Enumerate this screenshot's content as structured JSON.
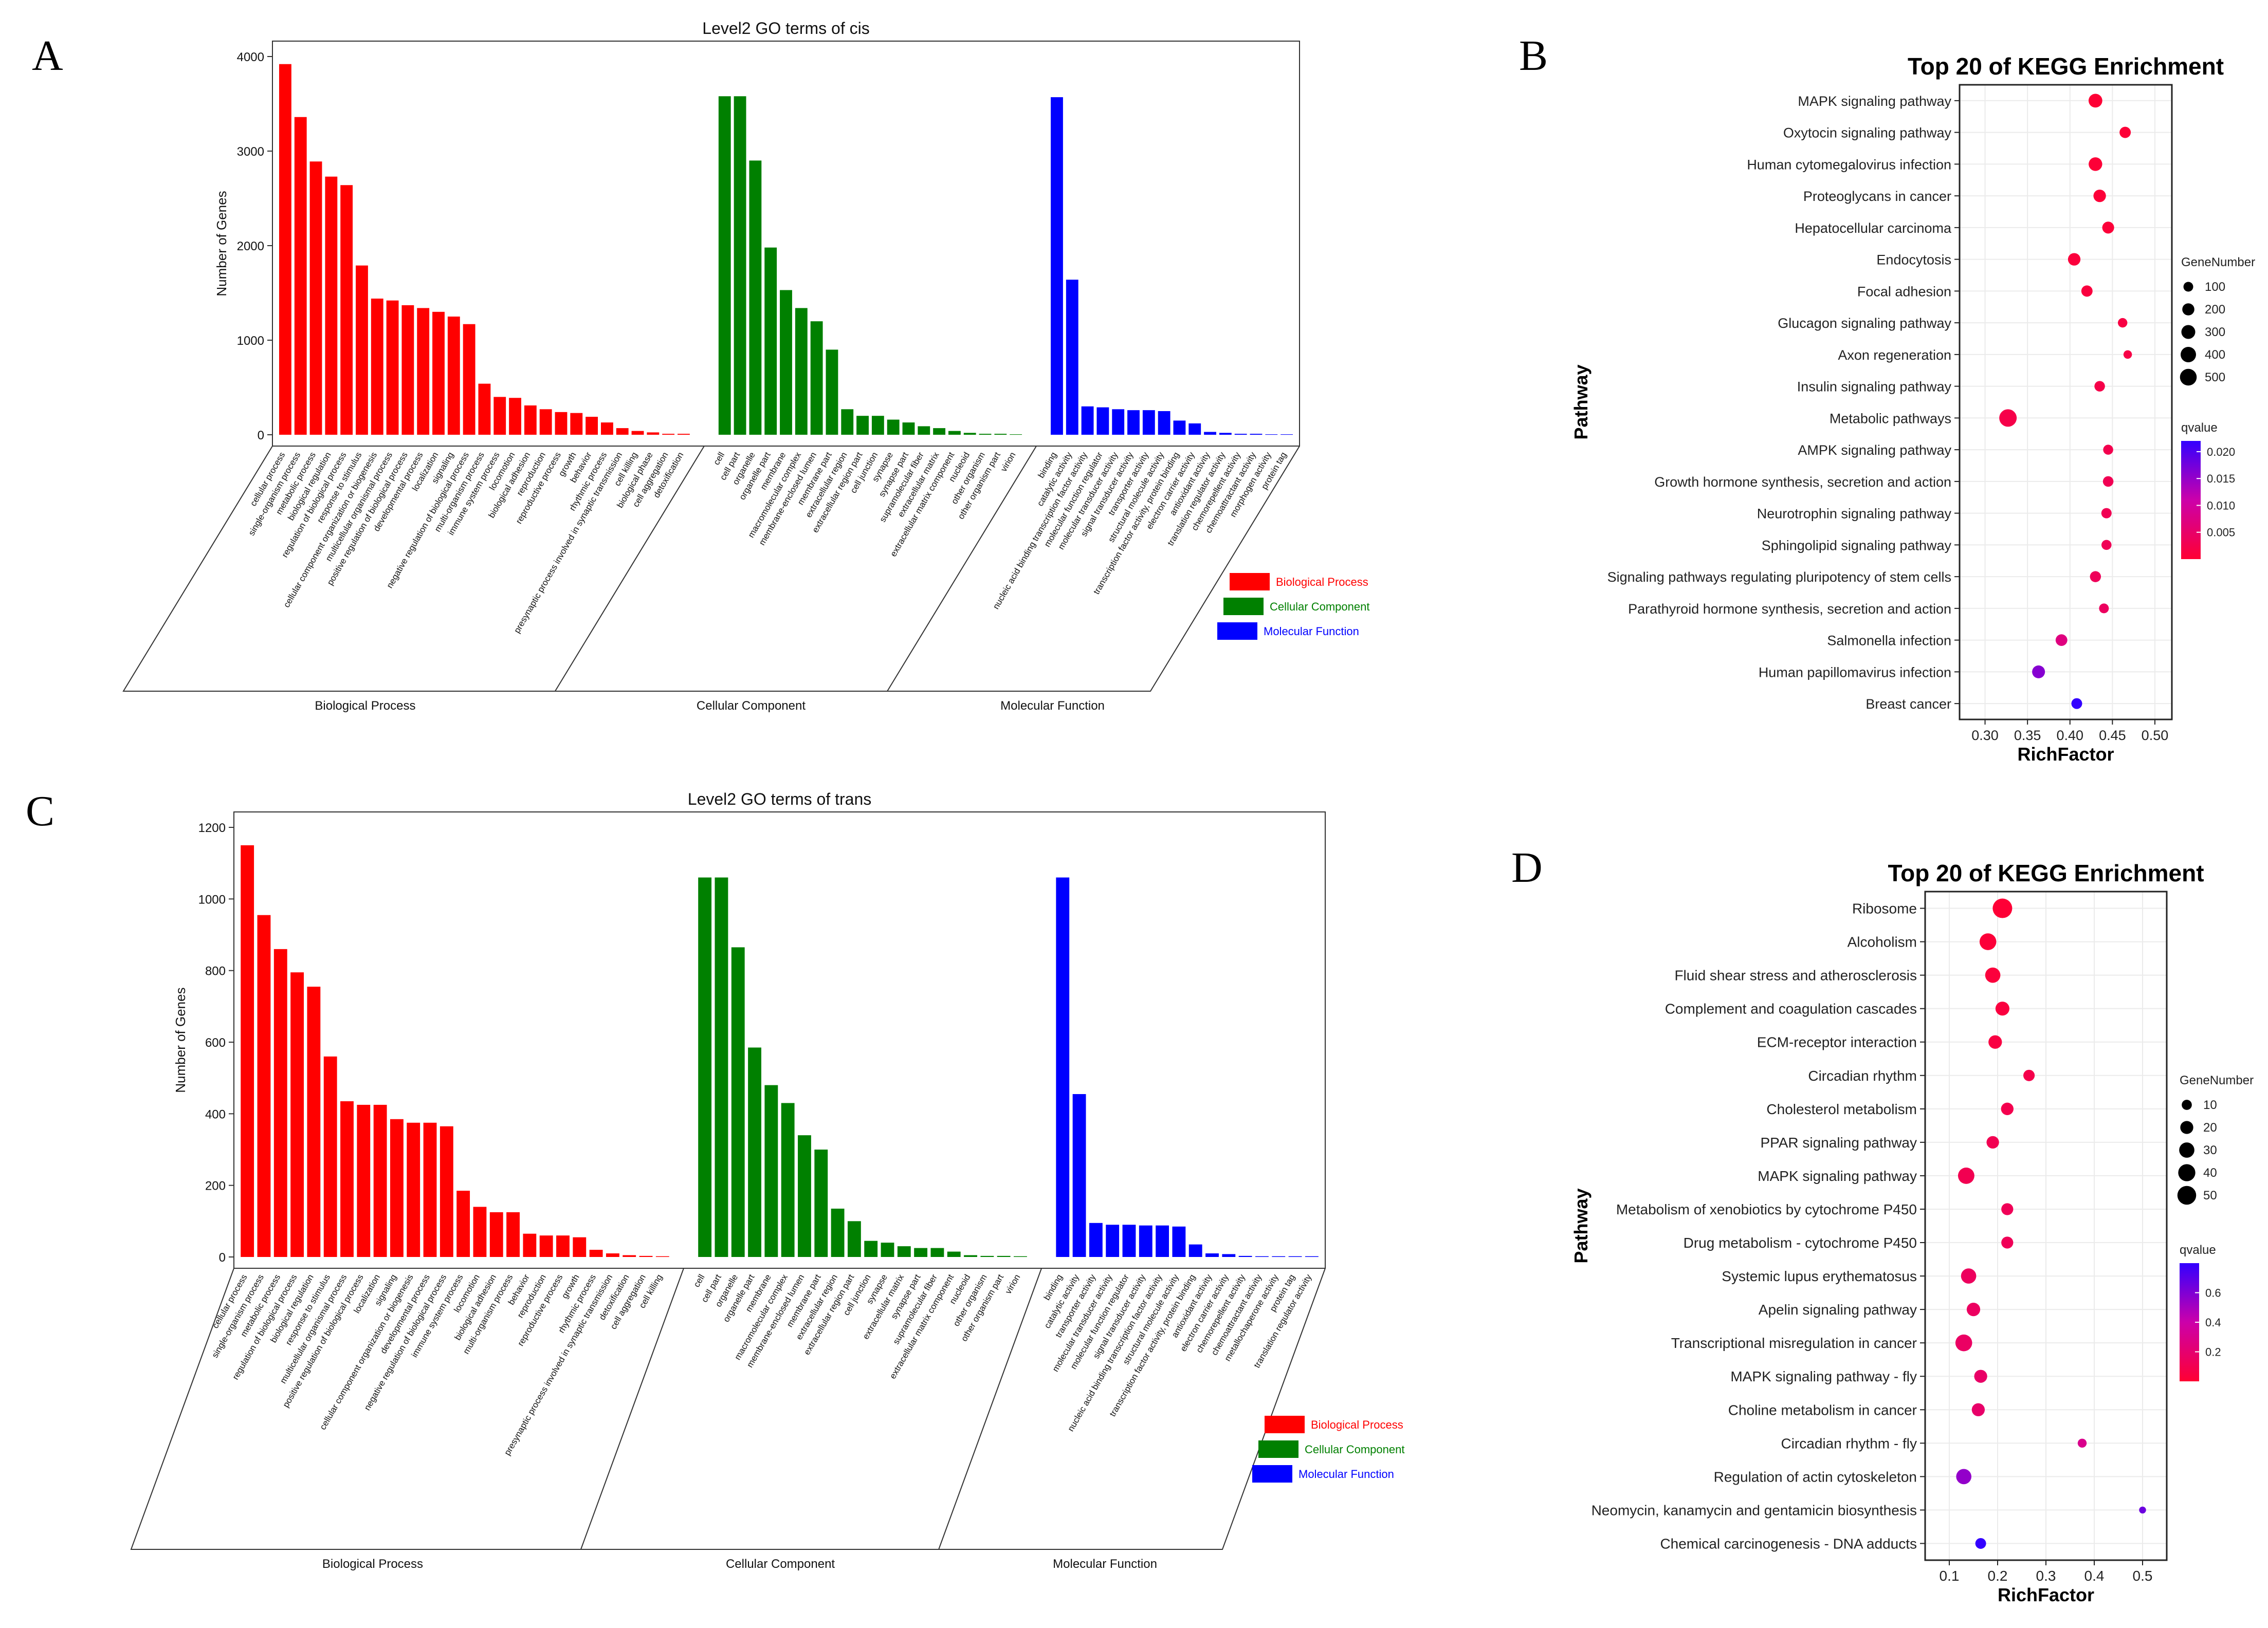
{
  "panels": {
    "a": "A",
    "b": "B",
    "c": "C",
    "d": "D"
  },
  "colors": {
    "bp": "#ff0000",
    "cc": "#008000",
    "mf": "#0000ff",
    "q_high": "#ff0033",
    "q_mid": "#cc00aa",
    "q_low": "#3300ff",
    "grid": "#ebebeb"
  },
  "chart_data": [
    {
      "id": "A",
      "type": "bar",
      "title": "Level2 GO terms of cis",
      "ylabel": "Number of Genes",
      "ylim": [
        0,
        4000
      ],
      "yticks": [
        0,
        1000,
        2000,
        3000,
        4000
      ],
      "legend": [
        "Biological Process",
        "Cellular Component",
        "Molecular Function"
      ],
      "legend_position": "bottom-right",
      "groups": [
        {
          "name": "Biological Process",
          "color_key": "bp",
          "categories": [
            "cellular process",
            "single-organism process",
            "metabolic process",
            "biological regulation",
            "regulation of biological process",
            "response to stimulus",
            "cellular component organization or biogenesis",
            "multicellular organismal process",
            "positive regulation of biological process",
            "developmental process",
            "localization",
            "signaling",
            "negative regulation of biological process",
            "multi-organism process",
            "immune system process",
            "locomotion",
            "biological adhesion",
            "reproduction",
            "reproductive process",
            "growth",
            "behavior",
            "rhythmic process",
            "presynaptic process involved in synaptic transmission",
            "cell killing",
            "biological phase",
            "cell aggregation",
            "detoxification"
          ],
          "values": [
            3920,
            3360,
            2890,
            2730,
            2640,
            1790,
            1440,
            1420,
            1370,
            1340,
            1300,
            1250,
            1170,
            540,
            400,
            390,
            310,
            270,
            240,
            230,
            190,
            130,
            70,
            40,
            25,
            10,
            10
          ]
        },
        {
          "name": "Cellular Component",
          "color_key": "cc",
          "categories": [
            "cell",
            "cell part",
            "organelle",
            "organelle part",
            "membrane",
            "macromolecular complex",
            "membrane-enclosed lumen",
            "membrane part",
            "extracellular region",
            "extracellular region part",
            "cell junction",
            "synapse",
            "synapse part",
            "supramolecular fiber",
            "extracellular matrix",
            "extracellular matrix component",
            "nucleoid",
            "other organism",
            "other organism part",
            "virion"
          ],
          "values": [
            3580,
            3580,
            2900,
            1980,
            1530,
            1340,
            1200,
            900,
            270,
            200,
            200,
            160,
            130,
            90,
            70,
            40,
            20,
            10,
            10,
            5
          ]
        },
        {
          "name": "Molecular Function",
          "color_key": "mf",
          "categories": [
            "binding",
            "catalytic activity",
            "nucleic acid binding transcription factor activity",
            "molecular function regulator",
            "molecular transducer activity",
            "signal transducer activity",
            "transporter activity",
            "structural molecule activity",
            "transcription factor activity, protein binding",
            "electron carrier activity",
            "antioxidant activity",
            "translation regulator activity",
            "chemorepellent activity",
            "chemoattractant activity",
            "morphogen activity",
            "protein tag"
          ],
          "values": [
            3570,
            1640,
            300,
            290,
            270,
            260,
            260,
            250,
            150,
            120,
            30,
            20,
            10,
            10,
            5,
            5
          ]
        }
      ],
      "group_labels": [
        "Biological Process",
        "Cellular Component",
        "Molecular Function"
      ]
    },
    {
      "id": "B",
      "type": "scatter",
      "title": "Top 20 of KEGG Enrichment",
      "xlabel": "RichFactor",
      "ylabel": "Pathway",
      "xlim": [
        0.27,
        0.52
      ],
      "xticks": [
        0.3,
        0.35,
        0.4,
        0.45,
        0.5
      ],
      "xtick_labels": [
        "0.30",
        "0.35",
        "0.40",
        "0.45",
        "0.50"
      ],
      "size_legend_title": "GeneNumber",
      "size_legend_values": [
        100,
        200,
        300,
        400,
        500
      ],
      "color_legend_title": "qvalue",
      "color_legend_ticks": [
        "0.020",
        "0.015",
        "0.010",
        "0.005"
      ],
      "color_legend_tick_values": [
        0.02,
        0.015,
        0.01,
        0.005
      ],
      "color_range": [
        0,
        0.022
      ],
      "size_range": [
        30,
        560
      ],
      "pathways": [
        "MAPK signaling pathway",
        "Oxytocin signaling pathway",
        "Human cytomegalovirus infection",
        "Proteoglycans in cancer",
        "Hepatocellular carcinoma",
        "Endocytosis",
        "Focal adhesion",
        "Glucagon signaling pathway",
        "Axon regeneration",
        "Insulin signaling pathway",
        "Metabolic pathways",
        "AMPK signaling pathway",
        "Growth hormone synthesis, secretion and action",
        "Neurotrophin signaling pathway",
        "Sphingolipid signaling pathway",
        "Signaling pathways regulating pluripotency of stem cells",
        "Parathyroid hormone synthesis, secretion and action",
        "Salmonella infection",
        "Human papillomavirus infection",
        "Breast cancer"
      ],
      "richfactor": [
        0.43,
        0.465,
        0.43,
        0.435,
        0.445,
        0.405,
        0.42,
        0.462,
        0.468,
        0.435,
        0.327,
        0.445,
        0.445,
        0.443,
        0.443,
        0.43,
        0.44,
        0.39,
        0.363,
        0.408
      ],
      "gene_number": [
        290,
        160,
        280,
        220,
        190,
        220,
        160,
        90,
        60,
        130,
        560,
        110,
        130,
        120,
        110,
        150,
        100,
        180,
        240,
        140
      ],
      "qvalue": [
        0.0002,
        0.0004,
        0.0004,
        0.0005,
        0.0006,
        0.0008,
        0.001,
        0.0015,
        0.0018,
        0.002,
        0.002,
        0.0025,
        0.003,
        0.003,
        0.0032,
        0.0035,
        0.004,
        0.007,
        0.016,
        0.022
      ]
    },
    {
      "id": "C",
      "type": "bar",
      "title": "Level2 GO terms of trans",
      "ylabel": "Number of Genes",
      "ylim": [
        0,
        1200
      ],
      "yticks": [
        0,
        200,
        400,
        600,
        800,
        1000,
        1200
      ],
      "legend": [
        "Biological Process",
        "Cellular Component",
        "Molecular Function"
      ],
      "legend_position": "bottom-right",
      "groups": [
        {
          "name": "Biological Process",
          "color_key": "bp",
          "categories": [
            "cellular process",
            "single-organism process",
            "metabolic process",
            "regulation of biological process",
            "biological regulation",
            "response to stimulus",
            "multicellular organismal process",
            "positive regulation of biological process",
            "localization",
            "signaling",
            "cellular component organization or biogenesis",
            "developmental process",
            "negative regulation of biological process",
            "immune system process",
            "locomotion",
            "biological adhesion",
            "multi-organism process",
            "behavior",
            "reproduction",
            "reproductive process",
            "growth",
            "rhythmic process",
            "presynaptic process involved in synaptic transmission",
            "detoxification",
            "cell aggregation",
            "cell killing"
          ],
          "values": [
            1150,
            955,
            860,
            795,
            755,
            560,
            435,
            425,
            425,
            385,
            375,
            375,
            365,
            185,
            140,
            125,
            125,
            65,
            60,
            60,
            55,
            20,
            10,
            5,
            3,
            2
          ]
        },
        {
          "name": "Cellular Component",
          "color_key": "cc",
          "categories": [
            "cell",
            "cell part",
            "organelle",
            "organelle part",
            "membrane",
            "macromolecular complex",
            "membrane-enclosed lumen",
            "membrane part",
            "extracellular region",
            "extracellular region part",
            "cell junction",
            "synapse",
            "extracellular matrix",
            "synapse part",
            "supramolecular fiber",
            "extracellular matrix component",
            "nucleoid",
            "other organism",
            "other organism part",
            "virion"
          ],
          "values": [
            1060,
            1060,
            865,
            585,
            480,
            430,
            340,
            300,
            135,
            100,
            45,
            40,
            30,
            25,
            25,
            15,
            5,
            3,
            3,
            2
          ]
        },
        {
          "name": "Molecular Function",
          "color_key": "mf",
          "categories": [
            "binding",
            "catalytic activity",
            "transporter activity",
            "molecular transducer activity",
            "molecular function regulator",
            "signal transducer activity",
            "nucleic acid binding transcription factor activity",
            "structural molecule activity",
            "transcription factor activity, protein binding",
            "antioxidant activity",
            "electron carrier activity",
            "chemorepellent activity",
            "chemoattractant activity",
            "metallochaperone activity",
            "protein tag",
            "translation regulator activity"
          ],
          "values": [
            1060,
            455,
            95,
            90,
            90,
            88,
            88,
            85,
            35,
            10,
            8,
            3,
            2,
            2,
            2,
            2
          ]
        }
      ],
      "group_labels": [
        "Biological Process",
        "Cellular Component",
        "Molecular Function"
      ]
    },
    {
      "id": "D",
      "type": "scatter",
      "title": "Top 20 of KEGG Enrichment",
      "xlabel": "RichFactor",
      "ylabel": "Pathway",
      "xlim": [
        0.05,
        0.55
      ],
      "xticks": [
        0.1,
        0.2,
        0.3,
        0.4,
        0.5
      ],
      "xtick_labels": [
        "0.1",
        "0.2",
        "0.3",
        "0.4",
        "0.5"
      ],
      "size_legend_title": "GeneNumber",
      "size_legend_values": [
        10,
        20,
        30,
        40,
        50
      ],
      "color_legend_title": "qvalue",
      "color_legend_ticks": [
        "0.6",
        "0.4",
        "0.2"
      ],
      "color_legend_tick_values": [
        0.6,
        0.4,
        0.2
      ],
      "color_range": [
        0,
        0.8
      ],
      "size_range": [
        3,
        55
      ],
      "pathways": [
        "Ribosome",
        "Alcoholism",
        "Fluid shear stress and atherosclerosis",
        "Complement and coagulation cascades",
        "ECM-receptor interaction",
        "Circadian rhythm",
        "Cholesterol metabolism",
        "PPAR signaling pathway",
        "MAPK signaling pathway",
        "Metabolism of xenobiotics by cytochrome P450",
        "Drug metabolism - cytochrome P450",
        "Systemic lupus erythematosus",
        "Apelin signaling pathway",
        "Transcriptional misregulation in cancer",
        "MAPK signaling pathway - fly",
        "Choline metabolism in cancer",
        "Circadian rhythm - fly",
        "Regulation of actin cytoskeleton",
        "Neomycin, kanamycin and gentamicin biosynthesis",
        "Chemical carcinogenesis - DNA adducts"
      ],
      "richfactor": [
        0.21,
        0.18,
        0.19,
        0.21,
        0.195,
        0.265,
        0.22,
        0.19,
        0.135,
        0.22,
        0.22,
        0.14,
        0.15,
        0.13,
        0.165,
        0.16,
        0.375,
        0.13,
        0.5,
        0.165
      ],
      "gene_number": [
        55,
        38,
        30,
        24,
        22,
        14,
        18,
        18,
        36,
        16,
        16,
        30,
        22,
        38,
        20,
        20,
        7,
        30,
        3,
        12
      ],
      "qvalue": [
        0.01,
        0.02,
        0.03,
        0.04,
        0.05,
        0.08,
        0.09,
        0.1,
        0.1,
        0.12,
        0.12,
        0.14,
        0.15,
        0.16,
        0.17,
        0.18,
        0.3,
        0.55,
        0.65,
        0.8
      ]
    }
  ]
}
